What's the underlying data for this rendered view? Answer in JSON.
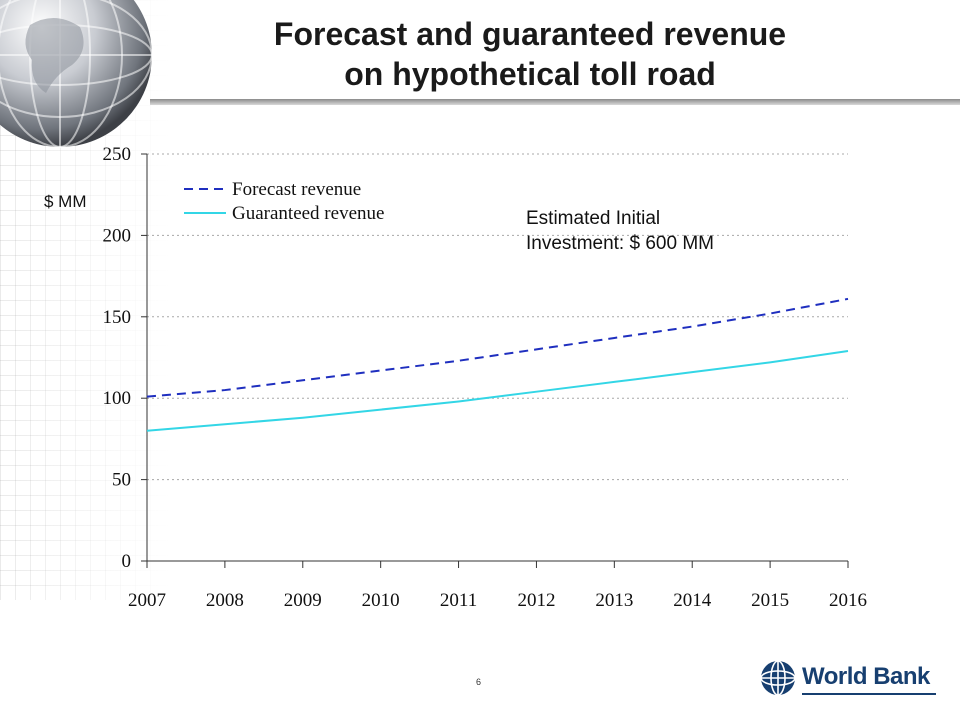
{
  "title_lines": [
    "Forecast and guaranteed revenue",
    "on hypothetical toll road"
  ],
  "y_unit_label": "$ MM",
  "annotation_lines": [
    "Estimated Initial",
    "Investment: $ 600 MM"
  ],
  "page_number": "6",
  "logo": {
    "text": "World Bank"
  },
  "colors": {
    "forecast": "#1f2fbf",
    "guaranteed": "#33d6e6",
    "grid": "#a8a8a8",
    "title": "#1a1a1a"
  },
  "chart_data": {
    "type": "line",
    "x": [
      "2007",
      "2008",
      "2009",
      "2010",
      "2011",
      "2012",
      "2013",
      "2014",
      "2015",
      "2016"
    ],
    "x_range": [
      2007,
      2016
    ],
    "ylim": [
      0,
      250
    ],
    "yticks": [
      0,
      50,
      100,
      150,
      200,
      250
    ],
    "grid": true,
    "legend_position": "top-left",
    "series": [
      {
        "name": "Forecast revenue",
        "style": "dashed",
        "color": "#1f2fbf",
        "x": [
          2007,
          2008,
          2009,
          2010,
          2011,
          2012,
          2013,
          2014,
          2015,
          2016
        ],
        "values": [
          101,
          105,
          111,
          117,
          123,
          130,
          137,
          144,
          152,
          161
        ]
      },
      {
        "name": "Guaranteed revenue",
        "style": "solid",
        "color": "#33d6e6",
        "x": [
          2007,
          2008,
          2009,
          2010,
          2011,
          2012,
          2013,
          2014,
          2015,
          2016
        ],
        "values": [
          80,
          84,
          88,
          93,
          98,
          104,
          110,
          116,
          122,
          129
        ]
      }
    ]
  }
}
